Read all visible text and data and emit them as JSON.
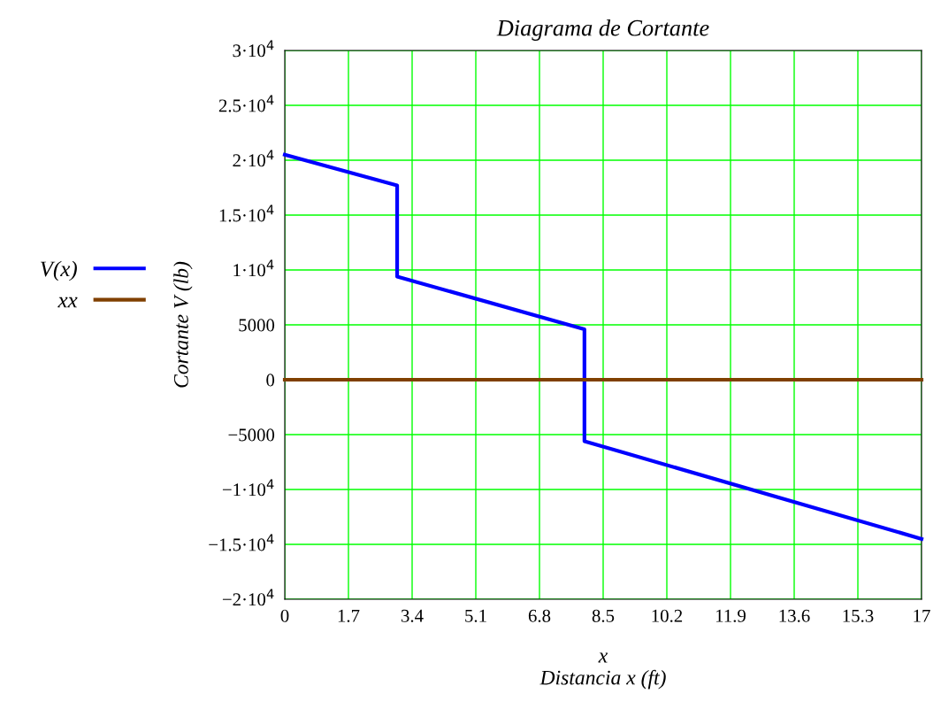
{
  "chart_data": {
    "type": "line",
    "title": "Diagrama de Cortante",
    "xlabel": "x\nDistancia x (ft)",
    "ylabel": "Cortante V (lb)",
    "series": [
      {
        "name": "V(x)",
        "color": "#0000ff",
        "x": [
          0,
          3,
          3,
          8,
          8,
          17
        ],
        "values": [
          20500,
          17700,
          9400,
          4600,
          -5600,
          -14500
        ]
      },
      {
        "name": "xx",
        "color": "#804000",
        "x": [
          0,
          17
        ],
        "values": [
          0,
          0
        ]
      }
    ],
    "xlim": [
      0,
      17
    ],
    "xticks": [
      0,
      1.7,
      3.4,
      5.1,
      6.8,
      8.5,
      10.2,
      11.9,
      13.6,
      15.3,
      17
    ],
    "ylim": [
      -20000,
      30000
    ],
    "yticks": [
      {
        "value": -20000,
        "label": "−2·10$^{4}$"
      },
      {
        "value": -15000,
        "label": "−1.5·10$^{4}$"
      },
      {
        "value": -10000,
        "label": "−1·10$^{4}$"
      },
      {
        "value": -5000,
        "label": "−5000"
      },
      0,
      5000,
      {
        "value": 10000,
        "label": "1·10$^{4}$"
      },
      {
        "value": 15000,
        "label": "1.5·10$^{4}$"
      },
      {
        "value": 20000,
        "label": "2·10$^{4}$"
      },
      {
        "value": 25000,
        "label": "2.5·10$^{4}$"
      },
      {
        "value": 30000,
        "label": "3·10$^{4}$"
      }
    ],
    "grid": true,
    "legend": "left",
    "marker": "none",
    "line_style": "solid"
  }
}
